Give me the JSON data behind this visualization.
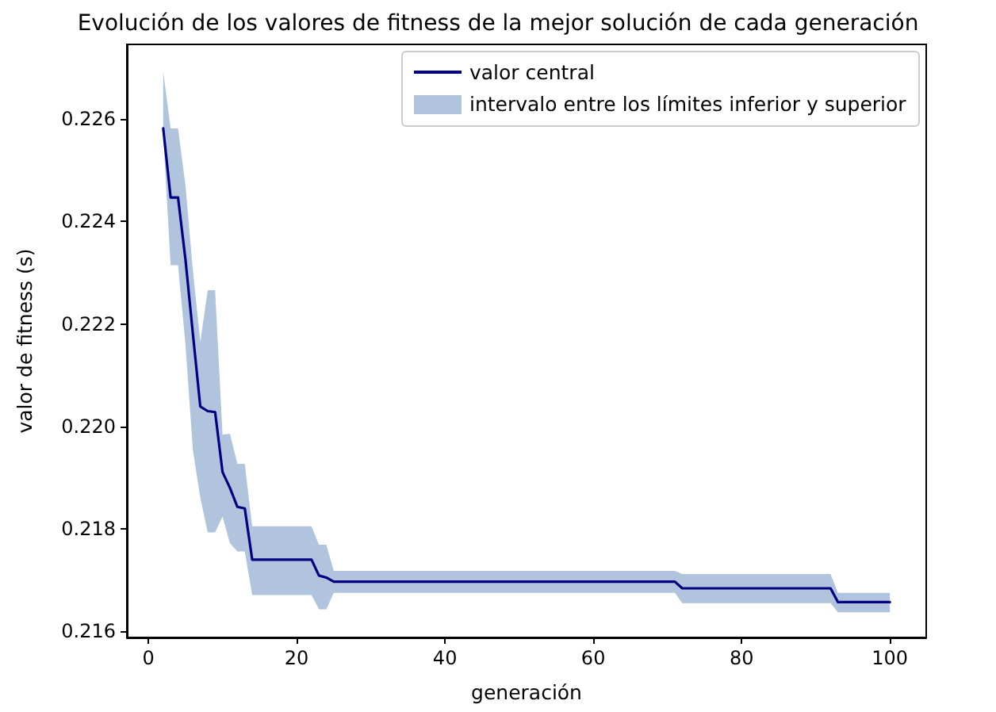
{
  "chart_data": {
    "type": "line",
    "title": "Evolución de los valores de fitness de la mejor solución de cada generación",
    "xlabel": "generación",
    "ylabel": "valor de fitness (s)",
    "annotations": [
      "intervalo entre los límites inferior y superior"
    ],
    "x": [
      2,
      3,
      4,
      5,
      6,
      7,
      8,
      9,
      10,
      11,
      12,
      13,
      14,
      22,
      23,
      24,
      25,
      71,
      72,
      92,
      93,
      100
    ],
    "series": [
      {
        "name": "valor central",
        "color": "#000080",
        "values": [
          0.22582,
          0.22447,
          0.22447,
          0.22326,
          0.22181,
          0.22039,
          0.2203,
          0.22028,
          0.21911,
          0.2188,
          0.21843,
          0.2184,
          0.2174,
          0.2174,
          0.21709,
          0.21705,
          0.21697,
          0.21697,
          0.21684,
          0.21684,
          0.21657,
          0.21657
        ],
        "upper": [
          0.22693,
          0.22582,
          0.22582,
          0.22471,
          0.22305,
          0.22165,
          0.22266,
          0.22266,
          0.21984,
          0.21986,
          0.21927,
          0.21927,
          0.21805,
          0.21805,
          0.21769,
          0.21769,
          0.21718,
          0.21718,
          0.21712,
          0.21712,
          0.21675,
          0.21675
        ],
        "lower": [
          0.2257,
          0.22315,
          0.22315,
          0.2216,
          0.21954,
          0.21861,
          0.21793,
          0.21793,
          0.21824,
          0.21772,
          0.21756,
          0.21756,
          0.21671,
          0.21671,
          0.21643,
          0.21643,
          0.21675,
          0.21675,
          0.21655,
          0.21655,
          0.21637,
          0.21637
        ]
      }
    ],
    "xlim": [
      -2.9,
      104.9
    ],
    "xticks": [
      0,
      20,
      40,
      60,
      80,
      100
    ],
    "ylim": [
      0.21588,
      0.22746
    ],
    "yticks": [
      {
        "value": 0.216,
        "label": "0.216"
      },
      {
        "value": 0.218,
        "label": "0.218"
      },
      {
        "value": 0.22,
        "label": "0.220"
      },
      {
        "value": 0.222,
        "label": "0.222"
      },
      {
        "value": 0.224,
        "label": "0.224"
      },
      {
        "value": 0.226,
        "label": "0.226"
      }
    ],
    "legend": "top right",
    "grid": false,
    "marker": "none",
    "line_style": "solid"
  }
}
